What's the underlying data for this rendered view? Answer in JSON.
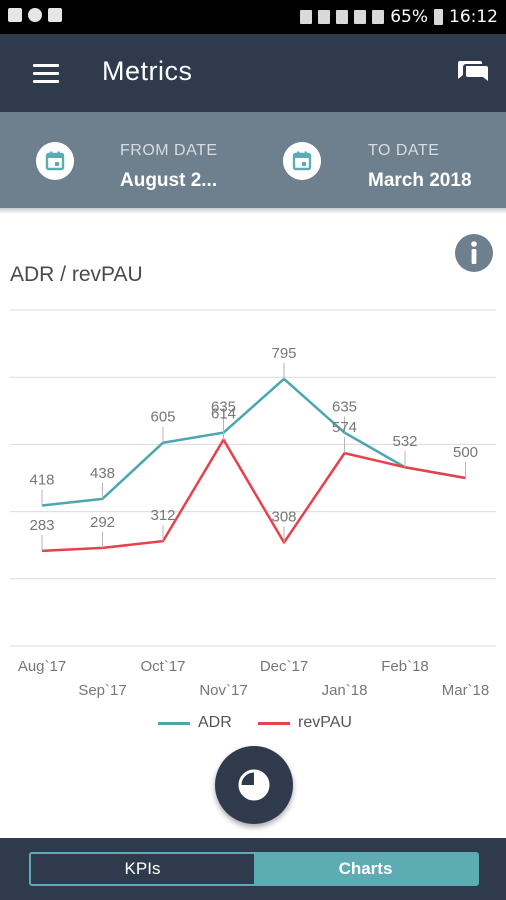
{
  "status_bar": {
    "battery": "65%",
    "time": "16:12"
  },
  "app_bar": {
    "title": "Metrics"
  },
  "date_range": {
    "from_caption": "FROM DATE",
    "from_value": "August 2...",
    "to_caption": "TO DATE",
    "to_value": "March 2018"
  },
  "colors": {
    "header": "#2f3b4c",
    "datebar": "#6e808d",
    "adr": "#4aa7b0",
    "revpau": "#e8414b",
    "accent": "#5dacb4"
  },
  "chart_data": {
    "type": "line",
    "title": "ADR / revPAU",
    "categories": [
      "Aug`17",
      "Sep`17",
      "Oct`17",
      "Nov`17",
      "Dec`17",
      "Jan`18",
      "Feb`18",
      "Mar`18"
    ],
    "series": [
      {
        "name": "ADR",
        "color": "#4aa7b0",
        "values": [
          418,
          438,
          605,
          635,
          795,
          635,
          532,
          500
        ]
      },
      {
        "name": "revPAU",
        "color": "#e8414b",
        "values": [
          283,
          292,
          312,
          614,
          308,
          574,
          532,
          500
        ]
      }
    ],
    "data_labels": [
      [
        "418",
        "438",
        "605",
        "635",
        "795",
        "635",
        "532",
        "500"
      ],
      [
        "283",
        "292",
        "312",
        "614",
        "308",
        "574",
        "",
        ""
      ]
    ],
    "ylim": [
      0,
      1000
    ],
    "grid": true,
    "legend": "bottom"
  },
  "fab": {
    "icon": "pie-chart-icon"
  },
  "bottom_tabs": {
    "kpis_label": "KPIs",
    "charts_label": "Charts",
    "active": "Charts"
  }
}
